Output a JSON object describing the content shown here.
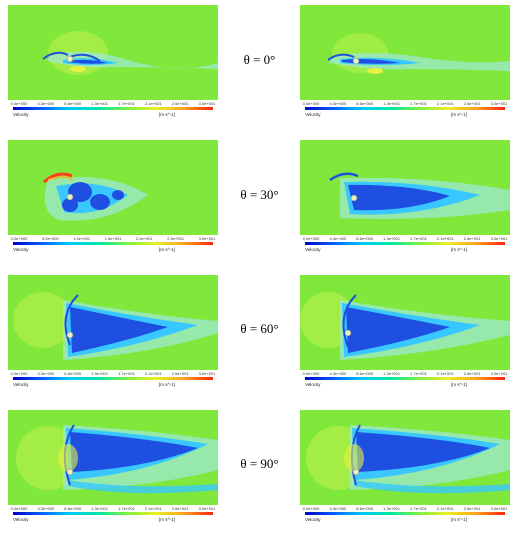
{
  "colorbar": {
    "variable": "Velocity",
    "unit": "[m s^-1]",
    "ticks_default": [
      "0.0e+000",
      "4.3e+000",
      "8.6e+000",
      "1.3e+001",
      "1.7e+001",
      "2.1e+001",
      "2.6e+001",
      "3.0e+001"
    ],
    "ticks_left_30": [
      "0.0e+000",
      "5.0e+000",
      "1.0e+001",
      "1.5e+001",
      "2.0e+001",
      "2.5e+001",
      "3.0e+001"
    ]
  },
  "colors": {
    "background": "#7fe83a",
    "wake": "#1f4fe0",
    "wake_edge": "#38c8ff",
    "stagnation": "#e8f040",
    "high": "#ff4020"
  },
  "rows": [
    {
      "angle_label": "θ = 0°",
      "angle_value_deg": 0
    },
    {
      "angle_label": "θ = 30°",
      "angle_value_deg": 30
    },
    {
      "angle_label": "θ = 60°",
      "angle_value_deg": 60
    },
    {
      "angle_label": "θ = 90°",
      "angle_value_deg": 90
    }
  ]
}
